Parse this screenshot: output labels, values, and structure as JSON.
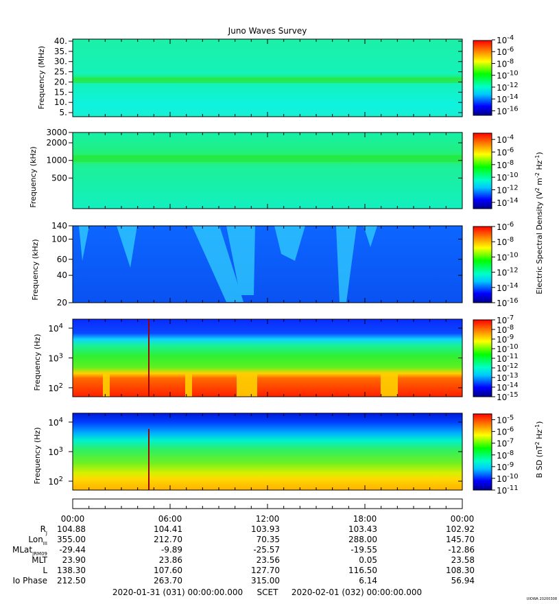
{
  "chart_data": [
    {
      "type": "heatmap",
      "title": "Juno Waves Survey",
      "ylabel": "Frequency (MHz)",
      "yscale": "linear",
      "ylim": [
        3,
        41
      ],
      "yticks": [
        5,
        10,
        15,
        20,
        25,
        30,
        35,
        40
      ],
      "ytick_labels": [
        "5.",
        "10.",
        "15.",
        "20.",
        "25.",
        "30.",
        "35.",
        "40."
      ],
      "colorbar": {
        "scale": "log",
        "range": [
          -17,
          -4
        ],
        "tick_exponents": [
          -16,
          -14,
          -12,
          -10,
          -8,
          -6,
          -4
        ]
      },
      "features": [
        {
          "kind": "band",
          "y": 21,
          "level": -11
        }
      ]
    },
    {
      "type": "heatmap",
      "ylabel": "Frequency (kHz)",
      "yscale": "log",
      "ylim": [
        150,
        3000
      ],
      "yticks": [
        500,
        1000,
        2000,
        3000
      ],
      "ytick_labels": [
        "500",
        "1000",
        "2000",
        "3000"
      ],
      "colorbar": {
        "scale": "log",
        "range": [
          -15,
          -3
        ],
        "tick_exponents": [
          -14,
          -12,
          -10,
          -8,
          -6,
          -4
        ]
      },
      "features": [
        {
          "kind": "band",
          "y": 1100,
          "level": -10
        }
      ]
    },
    {
      "type": "heatmap",
      "ylabel": "Frequency (kHz)",
      "yscale": "log",
      "ylim": [
        20,
        140
      ],
      "yticks": [
        20,
        40,
        60,
        100,
        140
      ],
      "ytick_labels": [
        "20",
        "40",
        "60",
        "100",
        "140"
      ],
      "colorbar": {
        "scale": "log",
        "range": [
          -16,
          -6
        ],
        "tick_exponents": [
          -16,
          -14,
          -12,
          -10,
          -8,
          -6
        ]
      }
    },
    {
      "type": "heatmap",
      "ylabel": "Frequency (Hz)",
      "yscale": "log",
      "ylim": [
        50,
        20000
      ],
      "yticks": [
        100,
        1000,
        10000
      ],
      "ytick_exponents": [
        "2",
        "3",
        "4"
      ],
      "colorbar": {
        "scale": "log",
        "range": [
          -15,
          -7
        ],
        "tick_exponents": [
          -15,
          -14,
          -13,
          -12,
          -11,
          -10,
          -9,
          -8,
          -7
        ]
      }
    },
    {
      "type": "heatmap",
      "ylabel": "Frequency (Hz)",
      "yscale": "log",
      "ylim": [
        50,
        20000
      ],
      "yticks": [
        100,
        1000,
        10000
      ],
      "ytick_exponents": [
        "2",
        "3",
        "4"
      ],
      "colorbar": {
        "scale": "log",
        "range": [
          -11,
          -4.5
        ],
        "tick_exponents": [
          -11,
          -10,
          -9,
          -8,
          -7,
          -6,
          -5
        ]
      }
    }
  ],
  "colorbar_labels": {
    "electric": {
      "main": "Electric Spectral Density (V",
      "sup1": "2",
      "mid": " m",
      "sup2": "-2",
      "sp": " Hz",
      "sup3": "-1",
      "end": ")"
    },
    "magnetic": {
      "main": "B SD (nT",
      "sup1": "2",
      "sp": " Hz",
      "sup2": "-1",
      "end": ")"
    }
  },
  "tick_base": "10",
  "time_axis": {
    "labels": [
      "00:00",
      "06:00",
      "12:00",
      "18:00",
      "00:00"
    ]
  },
  "ephemeris": [
    {
      "name": "R",
      "sub": "J",
      "values": [
        "104.88",
        "104.41",
        "103.93",
        "103.43",
        "102.92"
      ]
    },
    {
      "name": "Lon",
      "sub": "III",
      "values": [
        "355.00",
        "212.70",
        "70.35",
        "288.00",
        "145.70"
      ]
    },
    {
      "name": "MLat",
      "sub": "JRM09",
      "values": [
        "-29.44",
        "-9.89",
        "-25.57",
        "-19.55",
        "-12.86"
      ]
    },
    {
      "name": "MLT",
      "sub": "",
      "values": [
        "23.90",
        "23.86",
        "23.56",
        "0.05",
        "23.58"
      ]
    },
    {
      "name": "L",
      "sub": "",
      "values": [
        "138.30",
        "107.60",
        "127.70",
        "116.50",
        "108.30"
      ]
    },
    {
      "name": "Io Phase",
      "sub": "",
      "values": [
        "212.50",
        "263.70",
        "315.00",
        "6.14",
        "56.94"
      ]
    }
  ],
  "footer": {
    "start": "2020-01-31 (031) 00:00:00.000",
    "scet": "SCET",
    "end": "2020-02-01 (032) 00:00:00.000",
    "stamp": "UIOWA 20200308"
  }
}
